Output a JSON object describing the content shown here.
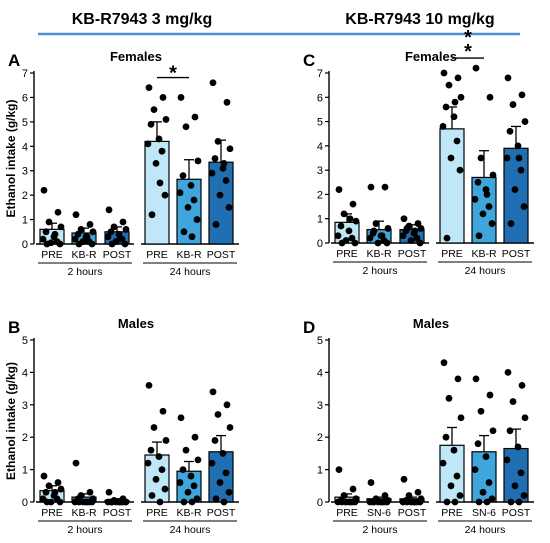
{
  "header": {
    "left": "KB-R7943 3 mg/kg",
    "right": "KB-R7943 10 mg/kg",
    "rule_color": "#4a90d9"
  },
  "colors": {
    "pre": "#bfe7f7",
    "mid": "#3fa6dc",
    "post": "#1f6fb2",
    "dot": "#000000"
  },
  "chart_data": [
    {
      "type": "bar",
      "panel": "A",
      "title": "Females",
      "ylabel": "Ethanol intake (g/kg)",
      "ylim": [
        0,
        7
      ],
      "yticks": [
        0,
        1,
        2,
        3,
        4,
        5,
        6,
        7
      ],
      "groups": [
        {
          "label": "2 hours",
          "categories": [
            "PRE",
            "KB-R",
            "POST"
          ]
        },
        {
          "label": "24 hours",
          "categories": [
            "PRE",
            "KB-R",
            "POST"
          ]
        }
      ],
      "means": [
        0.6,
        0.45,
        0.5,
        4.2,
        2.65,
        3.35
      ],
      "errors": [
        0.25,
        0.2,
        0.2,
        0.8,
        0.8,
        0.9
      ],
      "points": [
        [
          2.2,
          1.3,
          0.9,
          0.7,
          0.5,
          0.3,
          0.2,
          0.1,
          0.05,
          0.0,
          0.0,
          0.4
        ],
        [
          1.2,
          0.8,
          0.6,
          0.5,
          0.4,
          0.3,
          0.2,
          0.1,
          0.1,
          0.0,
          0.0,
          0.3
        ],
        [
          1.4,
          0.9,
          0.7,
          0.6,
          0.5,
          0.4,
          0.3,
          0.2,
          0.1,
          0.0,
          0.0,
          0.2
        ],
        [
          6.4,
          6.0,
          5.5,
          5.1,
          4.9,
          4.3,
          4.1,
          3.8,
          3.3,
          2.0,
          1.2,
          2.5
        ],
        [
          6.0,
          5.2,
          4.8,
          3.4,
          2.8,
          2.4,
          2.1,
          1.8,
          1.5,
          1.0,
          0.5,
          0.3
        ],
        [
          6.6,
          5.8,
          4.2,
          3.9,
          3.5,
          3.1,
          2.9,
          2.6,
          2.0,
          1.5,
          0.8,
          3.3
        ]
      ],
      "annotations": [
        {
          "text": "*",
          "between": [
            3,
            4
          ]
        }
      ]
    },
    {
      "type": "bar",
      "panel": "C",
      "title": "Females",
      "ylabel": "",
      "ylim": [
        0,
        7
      ],
      "yticks": [
        0,
        1,
        2,
        3,
        4,
        5,
        6,
        7
      ],
      "groups": [
        {
          "label": "2 hours",
          "categories": [
            "PRE",
            "KB-R",
            "POST"
          ]
        },
        {
          "label": "24 hours",
          "categories": [
            "PRE",
            "KB-R",
            "POST"
          ]
        }
      ],
      "means": [
        0.85,
        0.55,
        0.55,
        4.7,
        2.7,
        3.9
      ],
      "errors": [
        0.35,
        0.35,
        0.2,
        0.9,
        1.1,
        0.9
      ],
      "points": [
        [
          2.2,
          1.6,
          1.2,
          0.9,
          0.7,
          0.5,
          0.3,
          0.2,
          0.1,
          0.0,
          0.0,
          1.0
        ],
        [
          2.3,
          2.3,
          0.8,
          0.6,
          0.4,
          0.3,
          0.2,
          0.1,
          0.0,
          0.0,
          0.5,
          0.3
        ],
        [
          1.0,
          0.8,
          0.7,
          0.6,
          0.5,
          0.4,
          0.3,
          0.2,
          0.1,
          0.0,
          0.6,
          0.5
        ],
        [
          7.0,
          6.8,
          6.5,
          6.0,
          5.6,
          5.2,
          4.8,
          4.2,
          3.5,
          3.0,
          0.2,
          5.8
        ],
        [
          7.2,
          6.0,
          3.5,
          2.8,
          2.5,
          2.2,
          1.8,
          1.5,
          1.2,
          0.8,
          0.3,
          2.0
        ],
        [
          6.8,
          6.1,
          5.7,
          5.0,
          4.6,
          4.0,
          3.5,
          3.0,
          2.2,
          1.5,
          0.8,
          3.5
        ]
      ],
      "annotations": [
        {
          "text": "* *",
          "between": [
            3,
            4
          ]
        }
      ]
    },
    {
      "type": "bar",
      "panel": "B",
      "title": "Males",
      "ylabel": "Ethanol intake (g/kg)",
      "ylim": [
        0,
        5
      ],
      "yticks": [
        0,
        1,
        2,
        3,
        4,
        5
      ],
      "groups": [
        {
          "label": "2 hours",
          "categories": [
            "PRE",
            "KB-R",
            "POST"
          ]
        },
        {
          "label": "24 hours",
          "categories": [
            "PRE",
            "KB-R",
            "POST"
          ]
        }
      ],
      "means": [
        0.35,
        0.15,
        0.05,
        1.45,
        0.95,
        1.55
      ],
      "errors": [
        0.15,
        0.1,
        0.05,
        0.4,
        0.3,
        0.5
      ],
      "points": [
        [
          0.8,
          0.6,
          0.5,
          0.4,
          0.3,
          0.2,
          0.1,
          0.1,
          0.0,
          0.0,
          0.0,
          0.3
        ],
        [
          1.2,
          0.3,
          0.2,
          0.1,
          0.1,
          0.0,
          0.0,
          0.0,
          0.0,
          0.0,
          0.0,
          0.0
        ],
        [
          0.3,
          0.1,
          0.05,
          0.0,
          0.0,
          0.0,
          0.0,
          0.0,
          0.0,
          0.0,
          0.0,
          0.0
        ],
        [
          3.6,
          2.8,
          2.3,
          1.9,
          1.6,
          1.4,
          1.2,
          1.0,
          0.7,
          0.4,
          0.2,
          0.0
        ],
        [
          2.6,
          2.0,
          1.6,
          1.3,
          1.0,
          0.8,
          0.6,
          0.5,
          0.3,
          0.1,
          0.0,
          0.0
        ],
        [
          3.4,
          3.0,
          2.7,
          2.3,
          1.9,
          1.5,
          1.2,
          0.9,
          0.6,
          0.3,
          0.1,
          0.0
        ]
      ],
      "annotations": []
    },
    {
      "type": "bar",
      "panel": "D",
      "title": "Males",
      "ylabel": "",
      "ylim": [
        0,
        5
      ],
      "yticks": [
        0,
        1,
        2,
        3,
        4,
        5
      ],
      "groups": [
        {
          "label": "2 hours",
          "categories": [
            "PRE",
            "SN-6",
            "POST"
          ]
        },
        {
          "label": "24 hours",
          "categories": [
            "PRE",
            "SN-6",
            "POST"
          ]
        }
      ],
      "means": [
        0.15,
        0.1,
        0.1,
        1.75,
        1.55,
        1.65
      ],
      "errors": [
        0.1,
        0.05,
        0.05,
        0.55,
        0.5,
        0.6
      ],
      "points": [
        [
          1.0,
          0.4,
          0.2,
          0.1,
          0.05,
          0.0,
          0.0,
          0.0,
          0.0,
          0.0,
          0.0,
          0.0
        ],
        [
          0.6,
          0.2,
          0.1,
          0.05,
          0.0,
          0.0,
          0.0,
          0.0,
          0.0,
          0.0,
          0.0,
          0.0
        ],
        [
          0.7,
          0.3,
          0.2,
          0.1,
          0.05,
          0.0,
          0.0,
          0.0,
          0.0,
          0.0,
          0.0,
          0.0
        ],
        [
          4.3,
          3.8,
          3.2,
          2.6,
          2.0,
          1.6,
          1.2,
          0.8,
          0.5,
          0.2,
          0.0,
          0.0
        ],
        [
          3.8,
          3.3,
          2.8,
          2.2,
          1.8,
          1.4,
          1.0,
          0.6,
          0.3,
          0.1,
          0.0,
          0.0
        ],
        [
          4.0,
          3.6,
          3.1,
          2.6,
          2.2,
          1.7,
          1.3,
          0.9,
          0.5,
          0.2,
          0.0,
          0.0
        ]
      ],
      "annotations": []
    }
  ]
}
